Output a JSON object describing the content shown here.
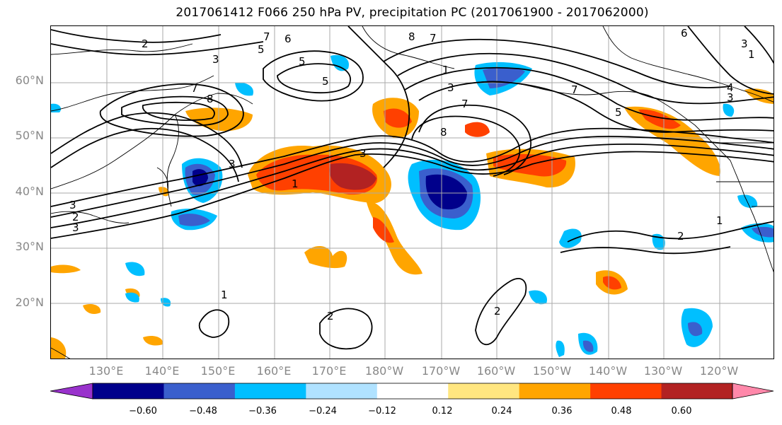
{
  "title": "2017061412 F066 250 hPa PV, precipitation PC (2017061900 - 2017062000)",
  "lat_labels": [
    "60°N",
    "50°N",
    "40°N",
    "30°N",
    "20°N"
  ],
  "lon_labels": [
    "130°E",
    "140°E",
    "150°E",
    "160°E",
    "170°E",
    "180°W",
    "170°W",
    "160°W",
    "150°W",
    "140°W",
    "130°W",
    "120°W"
  ],
  "colorbar": {
    "ticks": [
      "−0.60",
      "−0.48",
      "−0.36",
      "−0.24",
      "−0.12",
      "0.12",
      "0.24",
      "0.36",
      "0.48",
      "0.60"
    ],
    "colors": [
      "#9932cc",
      "#00008b",
      "#3a5fcd",
      "#00bfff",
      "#b0e2ff",
      "#ffffff",
      "#ffe680",
      "#ffa500",
      "#ff4000",
      "#b22222",
      "#ff88aa"
    ]
  },
  "contour_labels": [
    "2",
    "7",
    "6",
    "8",
    "7",
    "5",
    "3",
    "5",
    "5",
    "1",
    "3",
    "7",
    "8",
    "7",
    "7",
    "8",
    "3",
    "6",
    "3",
    "4",
    "5",
    "3",
    "3",
    "3",
    "1",
    "2",
    "2",
    "3",
    "1",
    "1",
    "2",
    "2",
    "1"
  ],
  "icons": {
    "coastlines": "coastline-lines",
    "gridlines": "lat-lon-grid"
  }
}
